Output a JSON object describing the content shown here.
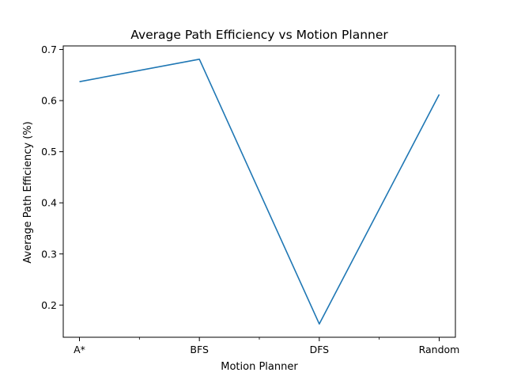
{
  "chart_data": {
    "type": "line",
    "title": "Average Path Efficiency vs Motion Planner",
    "xlabel": "Motion Planner",
    "ylabel": "Average Path Efficiency (%)",
    "categories": [
      "A*",
      "BFS",
      "DFS",
      "Random"
    ],
    "series": [
      {
        "values": [
          0.637,
          0.681,
          0.163,
          0.612
        ]
      }
    ],
    "yticks": [
      0.2,
      0.3,
      0.4,
      0.5,
      0.6,
      0.7
    ],
    "ylim": [
      0.137,
      0.707
    ],
    "grid": false,
    "colors": {
      "line": "#1f77b4",
      "axes": "#000000",
      "background": "#ffffff"
    }
  }
}
